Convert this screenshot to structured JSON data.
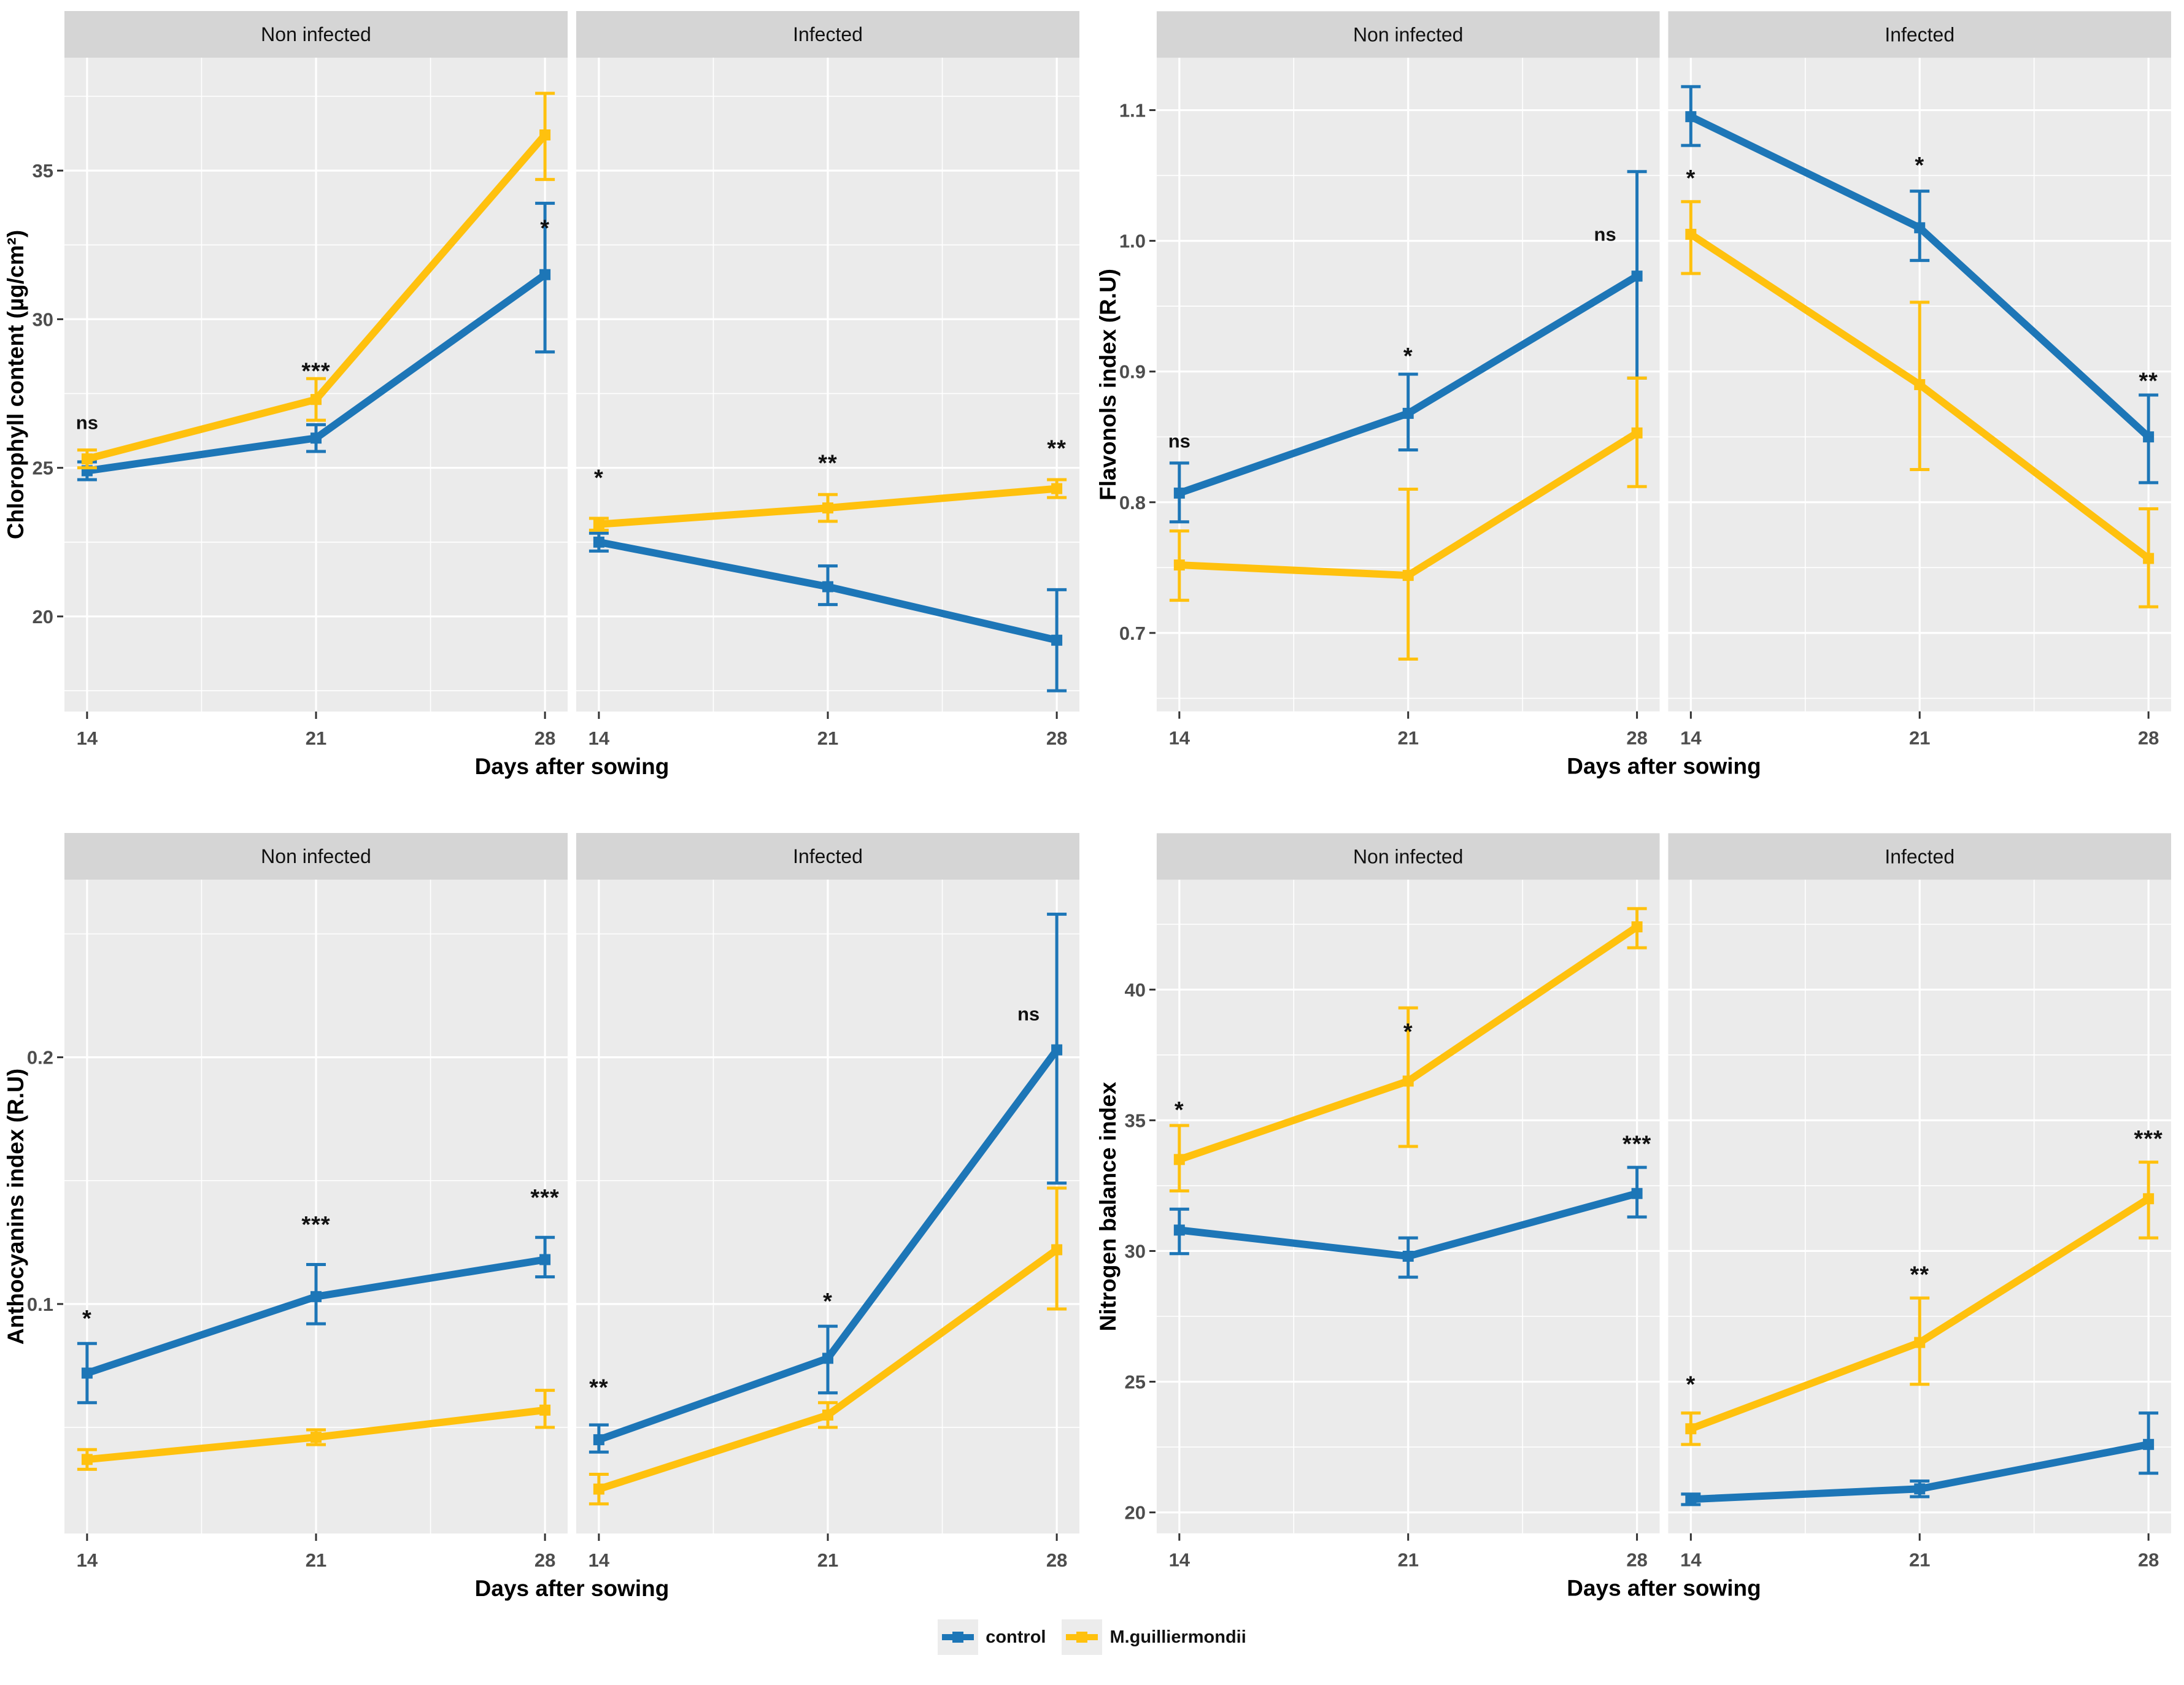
{
  "figure": {
    "legend": {
      "items": [
        {
          "label": "control",
          "color": "#1d76b7"
        },
        {
          "label": "M.guilliermondii",
          "color": "#ffc10e"
        }
      ]
    },
    "facet_labels": [
      "Non infected",
      "Infected"
    ],
    "significance_levels": [
      "ns",
      "*",
      "**",
      "***"
    ],
    "colors": {
      "panel_background": "#ebebeb",
      "strip_background": "#d5d5d5",
      "gridline": "#ffffff",
      "control_series": "#1d76b7",
      "mguilliermondii_series": "#ffc10e"
    }
  },
  "chart_data": [
    {
      "type": "line",
      "id": "chlorophyll",
      "title": "",
      "ylabel": "Chlorophyll content (µg/cm²)",
      "xlabel": "Days after sowing",
      "x": [
        14,
        21,
        28
      ],
      "xtick_labels": [
        "14",
        "21",
        "28"
      ],
      "xminor": [
        17.5,
        24.5
      ],
      "yticks": [
        20,
        25,
        30,
        35
      ],
      "ytick_labels": [
        "20",
        "25",
        "30",
        "35"
      ],
      "yminor": [
        17.5,
        22.5,
        27.5,
        32.5,
        37.5
      ],
      "ylim": [
        16.8,
        38.8
      ],
      "legend_position": "bottom",
      "grid": true,
      "facets": [
        {
          "label": "Non infected",
          "series": [
            {
              "name": "control",
              "color": "#1d76b7",
              "values": [
                24.9,
                26.0,
                31.5
              ],
              "err_low": [
                24.6,
                25.55,
                28.9
              ],
              "err_high": [
                25.2,
                26.45,
                33.9
              ]
            },
            {
              "name": "M.guilliermondii",
              "color": "#ffc10e",
              "values": [
                25.3,
                27.3,
                36.2
              ],
              "err_low": [
                25.0,
                26.6,
                34.7
              ],
              "err_high": [
                25.6,
                28.0,
                37.6
              ]
            }
          ],
          "annotations": [
            {
              "x": 14,
              "y": 26.3,
              "text": "ns"
            },
            {
              "x": 21,
              "y": 28.0,
              "text": "***"
            },
            {
              "x": 28,
              "y": 32.8,
              "text": "*"
            }
          ]
        },
        {
          "label": "Infected",
          "series": [
            {
              "name": "control",
              "color": "#1d76b7",
              "values": [
                22.5,
                21.0,
                19.2
              ],
              "err_low": [
                22.2,
                20.4,
                17.5
              ],
              "err_high": [
                22.8,
                21.7,
                20.9
              ]
            },
            {
              "name": "M.guilliermondii",
              "color": "#ffc10e",
              "values": [
                23.1,
                23.65,
                24.3
              ],
              "err_low": [
                22.9,
                23.2,
                24.0
              ],
              "err_high": [
                23.3,
                24.1,
                24.6
              ]
            }
          ],
          "annotations": [
            {
              "x": 14,
              "y": 24.4,
              "text": "*"
            },
            {
              "x": 21,
              "y": 24.9,
              "text": "**"
            },
            {
              "x": 28,
              "y": 25.4,
              "text": "**"
            }
          ]
        }
      ]
    },
    {
      "type": "line",
      "id": "flavonols",
      "title": "",
      "ylabel": "Flavonols index (R.U)",
      "xlabel": "Days after sowing",
      "x": [
        14,
        21,
        28
      ],
      "xtick_labels": [
        "14",
        "21",
        "28"
      ],
      "xminor": [
        17.5,
        24.5
      ],
      "yticks": [
        0.7,
        0.8,
        0.9,
        1.0,
        1.1
      ],
      "ytick_labels": [
        "0.7",
        "0.8",
        "0.9",
        "1.0",
        "1.1"
      ],
      "yminor": [
        0.65,
        0.75,
        0.85,
        0.95,
        1.05
      ],
      "ylim": [
        0.64,
        1.14
      ],
      "legend_position": "bottom",
      "grid": true,
      "facets": [
        {
          "label": "Non infected",
          "series": [
            {
              "name": "control",
              "color": "#1d76b7",
              "values": [
                0.807,
                0.868,
                0.973
              ],
              "err_low": [
                0.785,
                0.84,
                0.895
              ],
              "err_high": [
                0.83,
                0.898,
                1.053
              ]
            },
            {
              "name": "M.guilliermondii",
              "color": "#ffc10e",
              "values": [
                0.752,
                0.744,
                0.853
              ],
              "err_low": [
                0.725,
                0.68,
                0.812
              ],
              "err_high": [
                0.778,
                0.81,
                0.895
              ]
            }
          ],
          "annotations": [
            {
              "x": 14,
              "y": 0.842,
              "text": "ns"
            },
            {
              "x": 21,
              "y": 0.906,
              "text": "*"
            },
            {
              "x": 28,
              "y": 1.0,
              "dx": -52,
              "text": "ns"
            }
          ]
        },
        {
          "label": "Infected",
          "series": [
            {
              "name": "control",
              "color": "#1d76b7",
              "values": [
                1.095,
                1.01,
                0.85
              ],
              "err_low": [
                1.073,
                0.985,
                0.815
              ],
              "err_high": [
                1.118,
                1.038,
                0.882
              ]
            },
            {
              "name": "M.guilliermondii",
              "color": "#ffc10e",
              "values": [
                1.005,
                0.89,
                0.757
              ],
              "err_low": [
                0.975,
                0.825,
                0.72
              ],
              "err_high": [
                1.03,
                0.953,
                0.795
              ]
            }
          ],
          "annotations": [
            {
              "x": 14,
              "y": 1.042,
              "text": "*"
            },
            {
              "x": 21,
              "y": 1.052,
              "text": "*"
            },
            {
              "x": 28,
              "y": 0.887,
              "text": "**"
            }
          ]
        }
      ]
    },
    {
      "type": "line",
      "id": "anthocyanins",
      "title": "",
      "ylabel": "Anthocyanins index (R.U)",
      "xlabel": "Days after sowing",
      "x": [
        14,
        21,
        28
      ],
      "xtick_labels": [
        "14",
        "21",
        "28"
      ],
      "xminor": [
        17.5,
        24.5
      ],
      "yticks": [
        0.1,
        0.2
      ],
      "ytick_labels": [
        "0.1",
        "0.2"
      ],
      "yminor": [
        0.05,
        0.15,
        0.25
      ],
      "ylim": [
        0.007,
        0.272
      ],
      "legend_position": "bottom",
      "grid": true,
      "facets": [
        {
          "label": "Non infected",
          "series": [
            {
              "name": "control",
              "color": "#1d76b7",
              "values": [
                0.072,
                0.103,
                0.118
              ],
              "err_low": [
                0.06,
                0.092,
                0.111
              ],
              "err_high": [
                0.084,
                0.116,
                0.127
              ]
            },
            {
              "name": "M.guilliermondii",
              "color": "#ffc10e",
              "values": [
                0.037,
                0.046,
                0.057
              ],
              "err_low": [
                0.033,
                0.043,
                0.05
              ],
              "err_high": [
                0.041,
                0.049,
                0.065
              ]
            }
          ],
          "annotations": [
            {
              "x": 14,
              "y": 0.091,
              "text": "*"
            },
            {
              "x": 21,
              "y": 0.129,
              "text": "***"
            },
            {
              "x": 28,
              "y": 0.14,
              "text": "***"
            }
          ]
        },
        {
          "label": "Infected",
          "series": [
            {
              "name": "control",
              "color": "#1d76b7",
              "values": [
                0.045,
                0.078,
                0.203
              ],
              "err_low": [
                0.04,
                0.064,
                0.149
              ],
              "err_high": [
                0.051,
                0.091,
                0.258
              ]
            },
            {
              "name": "M.guilliermondii",
              "color": "#ffc10e",
              "values": [
                0.025,
                0.055,
                0.122
              ],
              "err_low": [
                0.019,
                0.05,
                0.098
              ],
              "err_high": [
                0.031,
                0.06,
                0.147
              ]
            }
          ],
          "annotations": [
            {
              "x": 14,
              "y": 0.063,
              "text": "**"
            },
            {
              "x": 21,
              "y": 0.098,
              "text": "*"
            },
            {
              "x": 28,
              "y": 0.215,
              "dx": -46,
              "text": "ns"
            }
          ]
        }
      ]
    },
    {
      "type": "line",
      "id": "nitrogen-balance",
      "title": "",
      "ylabel": "Nitrogen balance index",
      "xlabel": "Days after sowing",
      "x": [
        14,
        21,
        28
      ],
      "xtick_labels": [
        "14",
        "21",
        "28"
      ],
      "xminor": [
        17.5,
        24.5
      ],
      "yticks": [
        20,
        25,
        30,
        35,
        40
      ],
      "ytick_labels": [
        "20",
        "25",
        "30",
        "35",
        "40"
      ],
      "yminor": [
        22.5,
        27.5,
        32.5,
        37.5,
        42.5
      ],
      "ylim": [
        19.2,
        44.2
      ],
      "legend_position": "bottom",
      "grid": true,
      "facets": [
        {
          "label": "Non infected",
          "series": [
            {
              "name": "control",
              "color": "#1d76b7",
              "values": [
                30.8,
                29.8,
                32.2
              ],
              "err_low": [
                29.9,
                29.0,
                31.3
              ],
              "err_high": [
                31.6,
                30.5,
                33.2
              ]
            },
            {
              "name": "M.guilliermondii",
              "color": "#ffc10e",
              "values": [
                33.5,
                36.5,
                42.4
              ],
              "err_low": [
                32.3,
                34.0,
                41.6
              ],
              "err_high": [
                34.8,
                39.3,
                43.1
              ]
            }
          ],
          "annotations": [
            {
              "x": 14,
              "y": 35.1,
              "text": "*"
            },
            {
              "x": 21,
              "y": 38.1,
              "text": "*"
            },
            {
              "x": 28,
              "y": 33.8,
              "text": "***"
            }
          ]
        },
        {
          "label": "Infected",
          "series": [
            {
              "name": "control",
              "color": "#1d76b7",
              "values": [
                20.5,
                20.9,
                22.6
              ],
              "err_low": [
                20.3,
                20.6,
                21.5
              ],
              "err_high": [
                20.7,
                21.2,
                23.8
              ]
            },
            {
              "name": "M.guilliermondii",
              "color": "#ffc10e",
              "values": [
                23.2,
                26.5,
                32.0
              ],
              "err_low": [
                22.6,
                24.9,
                30.5
              ],
              "err_high": [
                23.8,
                28.2,
                33.4
              ]
            }
          ],
          "annotations": [
            {
              "x": 14,
              "y": 24.6,
              "text": "*"
            },
            {
              "x": 21,
              "y": 28.8,
              "text": "**"
            },
            {
              "x": 28,
              "y": 34.0,
              "text": "***"
            }
          ]
        }
      ]
    }
  ]
}
